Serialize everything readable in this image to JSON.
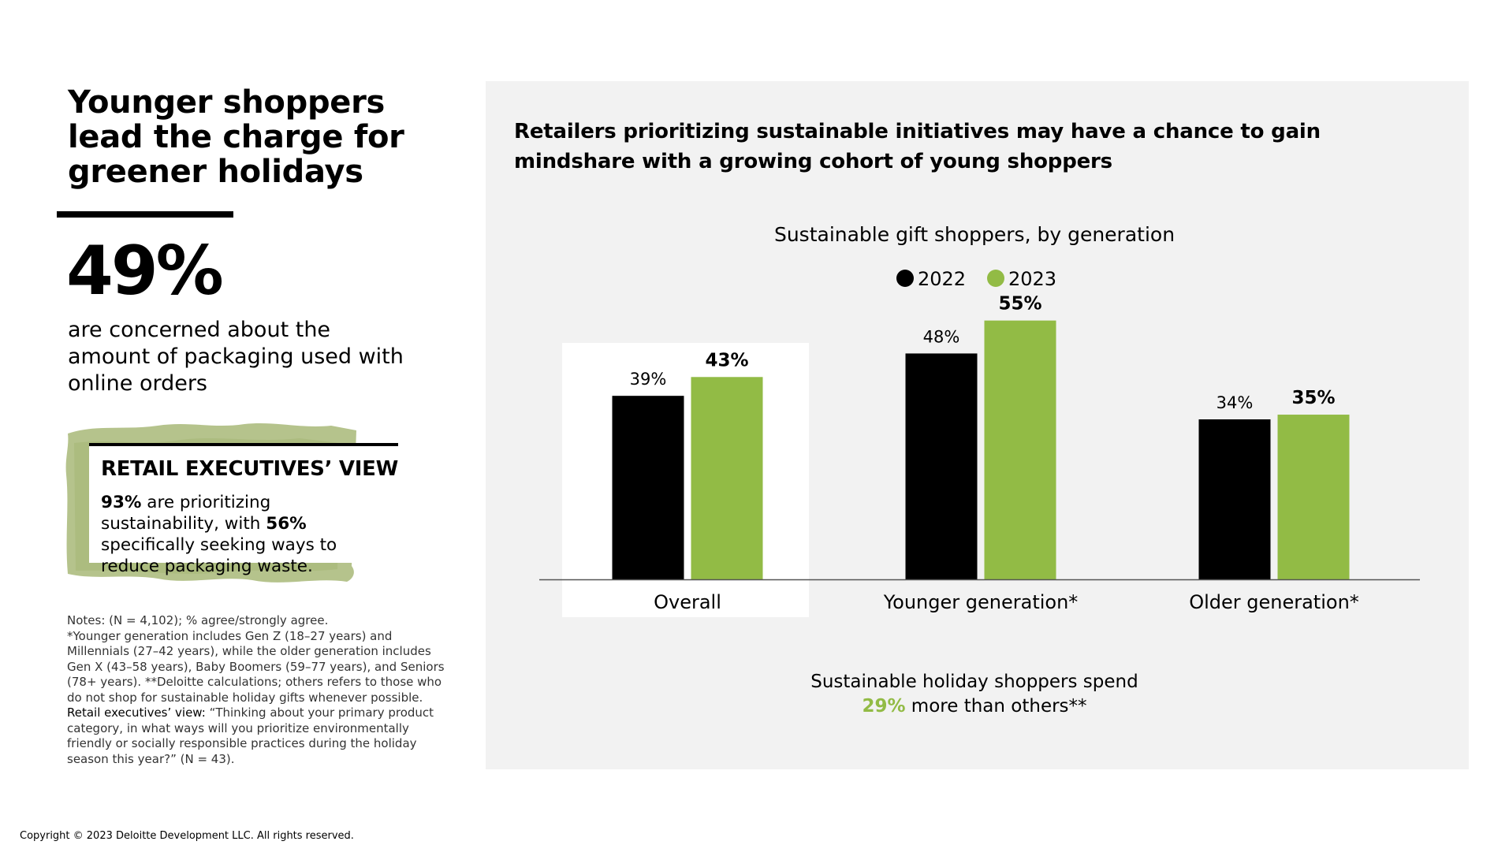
{
  "left": {
    "headline": "Younger shoppers lead the charge for greener holidays",
    "big_stat": "49%",
    "stat_description": "are concerned about the amount of packaging used with online orders",
    "exec_view": {
      "title": "RETAIL EXECUTIVES’ VIEW",
      "stat1": "93%",
      "text1": " are prioritizing sustainability, with ",
      "stat2": "56%",
      "text2": " specifically seeking ways to reduce packaging waste."
    },
    "notes": {
      "line1": "Notes: (N = 4,102); % agree/strongly agree.",
      "line2": "*Younger generation includes Gen Z (18–27 years) and Millennials (27–42 years), while the older generation includes Gen X (43–58 years), Baby Boomers (59–77 years), and Seniors (78+ years). **Deloitte calculations; others refers to those who do not shop for sustainable holiday gifts whenever possible.",
      "exec_label": "Retail executives’ view:",
      "exec_text": " “Thinking about your primary product category, in what ways will you prioritize environmentally friendly or socially responsible practices during the holiday season this year?” (N = 43)."
    }
  },
  "panel": {
    "heading": "Retailers prioritizing sustainable initiatives may have a chance to gain mindshare with a growing cohort of young shoppers",
    "spend_note_line1": "Sustainable holiday shoppers spend",
    "spend_pct": "29%",
    "spend_note_rest": " more than others**"
  },
  "copyright": "Copyright © 2023 Deloitte Development LLC. All rights reserved.",
  "colors": {
    "series_2022": "#000000",
    "series_2023": "#92bb45",
    "panel_bg": "#f2f2f2",
    "texture": "#a8b878"
  },
  "chart_data": {
    "type": "bar",
    "title": "Sustainable gift shoppers, by generation",
    "categories": [
      "Overall",
      "Younger generation*",
      "Older generation*"
    ],
    "series": [
      {
        "name": "2022",
        "values": [
          39,
          48,
          34
        ],
        "labels": [
          "39%",
          "48%",
          "34%"
        ]
      },
      {
        "name": "2023",
        "values": [
          43,
          55,
          35
        ],
        "labels": [
          "43%",
          "55%",
          "35%"
        ]
      }
    ],
    "highlighted_category": "Overall",
    "legend_position": "top-center",
    "ylim": [
      0,
      67
    ],
    "xlabel": "",
    "ylabel": ""
  }
}
